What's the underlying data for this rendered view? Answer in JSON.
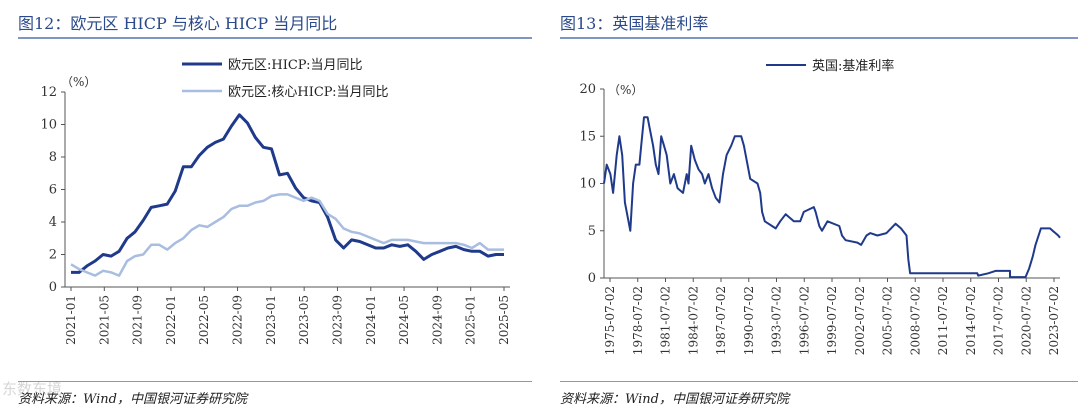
{
  "left_panel": {
    "title": "图12：欧元区 HICP 与核心 HICP 当月同比",
    "source": "资料来源：Wind，中国银河证券研究院"
  },
  "right_panel": {
    "title": "图13：英国基准利率",
    "source": "资料来源：Wind，中国银河证券研究院"
  },
  "watermark": "东数东境",
  "colors": {
    "dark_series": "#1f3a8a",
    "light_series": "#a9bde0",
    "title": "#2b4a8b"
  },
  "chart_data": [
    {
      "type": "line",
      "title": "图12：欧元区 HICP 与核心 HICP 当月同比",
      "unit_label": "（%）",
      "ylim": [
        0,
        12
      ],
      "yticks": [
        "0",
        "2",
        "4",
        "6",
        "8",
        "10",
        "12"
      ],
      "xlabels": [
        "2021-01",
        "2021-05",
        "2021-09",
        "2022-01",
        "2022-05",
        "2022-09",
        "2023-01",
        "2023-05",
        "2023-09",
        "2024-01",
        "2024-05",
        "2024-09",
        "2025-01",
        "2025-05"
      ],
      "legend_location": "top-center",
      "series": [
        {
          "name": "欧元区:HICP:当月同比",
          "color": "#1f3a8a",
          "values": [
            0.9,
            0.9,
            1.3,
            1.6,
            2.0,
            1.9,
            2.2,
            3.0,
            3.4,
            4.1,
            4.9,
            5.0,
            5.1,
            5.9,
            7.4,
            7.4,
            8.1,
            8.6,
            8.9,
            9.1,
            9.9,
            10.6,
            10.1,
            9.2,
            8.6,
            8.5,
            6.9,
            7.0,
            6.1,
            5.5,
            5.3,
            5.2,
            4.3,
            2.9,
            2.4,
            2.9,
            2.8,
            2.6,
            2.4,
            2.4,
            2.6,
            2.5,
            2.6,
            2.2,
            1.7,
            2.0,
            2.2,
            2.4,
            2.5,
            2.3,
            2.2,
            2.2,
            1.9,
            2.0,
            2.0
          ]
        },
        {
          "name": "欧元区:核心HICP:当月同比",
          "color": "#a9bde0",
          "values": [
            1.4,
            1.1,
            0.9,
            0.7,
            1.0,
            0.9,
            0.7,
            1.6,
            1.9,
            2.0,
            2.6,
            2.6,
            2.3,
            2.7,
            3.0,
            3.5,
            3.8,
            3.7,
            4.0,
            4.3,
            4.8,
            5.0,
            5.0,
            5.2,
            5.3,
            5.6,
            5.7,
            5.7,
            5.5,
            5.3,
            5.5,
            5.3,
            4.5,
            4.2,
            3.6,
            3.4,
            3.3,
            3.1,
            2.9,
            2.7,
            2.9,
            2.9,
            2.9,
            2.8,
            2.7,
            2.7,
            2.7,
            2.7,
            2.7,
            2.6,
            2.4,
            2.7,
            2.3,
            2.3,
            2.3
          ]
        }
      ]
    },
    {
      "type": "line",
      "title": "图13：英国基准利率",
      "unit_label": "（%）",
      "ylim": [
        0,
        20
      ],
      "yticks": [
        "0",
        "5",
        "10",
        "15",
        "20"
      ],
      "xlabels": [
        "1975-07-02",
        "1978-07-02",
        "1981-07-02",
        "1984-07-02",
        "1987-07-02",
        "1990-07-02",
        "1993-07-02",
        "1996-07-02",
        "1999-07-02",
        "2002-07-02",
        "2005-07-02",
        "2008-07-02",
        "2011-07-02",
        "2014-07-02",
        "2017-07-02",
        "2020-07-02",
        "2023-07-02"
      ],
      "xrange": [
        1975.5,
        2025.7
      ],
      "legend_location": "top-center",
      "series": [
        {
          "name": "英国:基准利率",
          "color": "#1f3a8a",
          "points": [
            [
              1975.5,
              10
            ],
            [
              1975.8,
              12
            ],
            [
              1976.2,
              11
            ],
            [
              1976.5,
              9
            ],
            [
              1976.9,
              13
            ],
            [
              1977.2,
              15
            ],
            [
              1977.5,
              13
            ],
            [
              1977.8,
              8
            ],
            [
              1978.1,
              6.5
            ],
            [
              1978.4,
              5
            ],
            [
              1978.7,
              10
            ],
            [
              1979.0,
              12
            ],
            [
              1979.4,
              12
            ],
            [
              1979.6,
              14
            ],
            [
              1979.9,
              17
            ],
            [
              1980.3,
              17
            ],
            [
              1980.5,
              16
            ],
            [
              1980.9,
              14
            ],
            [
              1981.2,
              12
            ],
            [
              1981.5,
              11
            ],
            [
              1981.8,
              15
            ],
            [
              1982.1,
              14
            ],
            [
              1982.4,
              13
            ],
            [
              1982.8,
              10
            ],
            [
              1983.2,
              11
            ],
            [
              1983.6,
              9.5
            ],
            [
              1984.2,
              9
            ],
            [
              1984.6,
              11
            ],
            [
              1984.8,
              10
            ],
            [
              1985.1,
              14
            ],
            [
              1985.5,
              12.5
            ],
            [
              1985.9,
              11.5
            ],
            [
              1986.3,
              11
            ],
            [
              1986.6,
              10
            ],
            [
              1987.0,
              11
            ],
            [
              1987.4,
              9.5
            ],
            [
              1987.8,
              8.5
            ],
            [
              1988.2,
              8
            ],
            [
              1988.6,
              11
            ],
            [
              1989.0,
              13
            ],
            [
              1989.5,
              14
            ],
            [
              1989.9,
              15
            ],
            [
              1990.6,
              15
            ],
            [
              1990.9,
              14
            ],
            [
              1991.3,
              12
            ],
            [
              1991.6,
              10.5
            ],
            [
              1992.4,
              10
            ],
            [
              1992.7,
              9
            ],
            [
              1992.9,
              7
            ],
            [
              1993.2,
              6
            ],
            [
              1994.4,
              5.25
            ],
            [
              1994.9,
              6
            ],
            [
              1995.5,
              6.75
            ],
            [
              1996.4,
              6
            ],
            [
              1997.1,
              6
            ],
            [
              1997.5,
              7
            ],
            [
              1998.6,
              7.5
            ],
            [
              1998.8,
              7
            ],
            [
              1999.2,
              5.5
            ],
            [
              1999.5,
              5
            ],
            [
              2000.1,
              6
            ],
            [
              2001.4,
              5.5
            ],
            [
              2001.7,
              4.5
            ],
            [
              2002.1,
              4
            ],
            [
              2003.4,
              3.75
            ],
            [
              2003.8,
              3.5
            ],
            [
              2004.4,
              4.5
            ],
            [
              2004.8,
              4.75
            ],
            [
              2005.6,
              4.5
            ],
            [
              2006.6,
              4.75
            ],
            [
              2007.1,
              5.25
            ],
            [
              2007.6,
              5.75
            ],
            [
              2008.2,
              5.25
            ],
            [
              2008.8,
              4.5
            ],
            [
              2009.0,
              2
            ],
            [
              2009.2,
              0.5
            ],
            [
              2016.6,
              0.5
            ],
            [
              2016.7,
              0.25
            ],
            [
              2017.8,
              0.5
            ],
            [
              2018.6,
              0.75
            ],
            [
              2020.2,
              0.75
            ],
            [
              2020.2,
              0.1
            ],
            [
              2021.9,
              0.1
            ],
            [
              2022.3,
              1
            ],
            [
              2022.7,
              2.25
            ],
            [
              2023.0,
              3.5
            ],
            [
              2023.6,
              5.25
            ],
            [
              2024.6,
              5.25
            ],
            [
              2024.9,
              5
            ],
            [
              2025.2,
              4.75
            ],
            [
              2025.5,
              4.5
            ],
            [
              2025.7,
              4.25
            ]
          ]
        }
      ]
    }
  ]
}
